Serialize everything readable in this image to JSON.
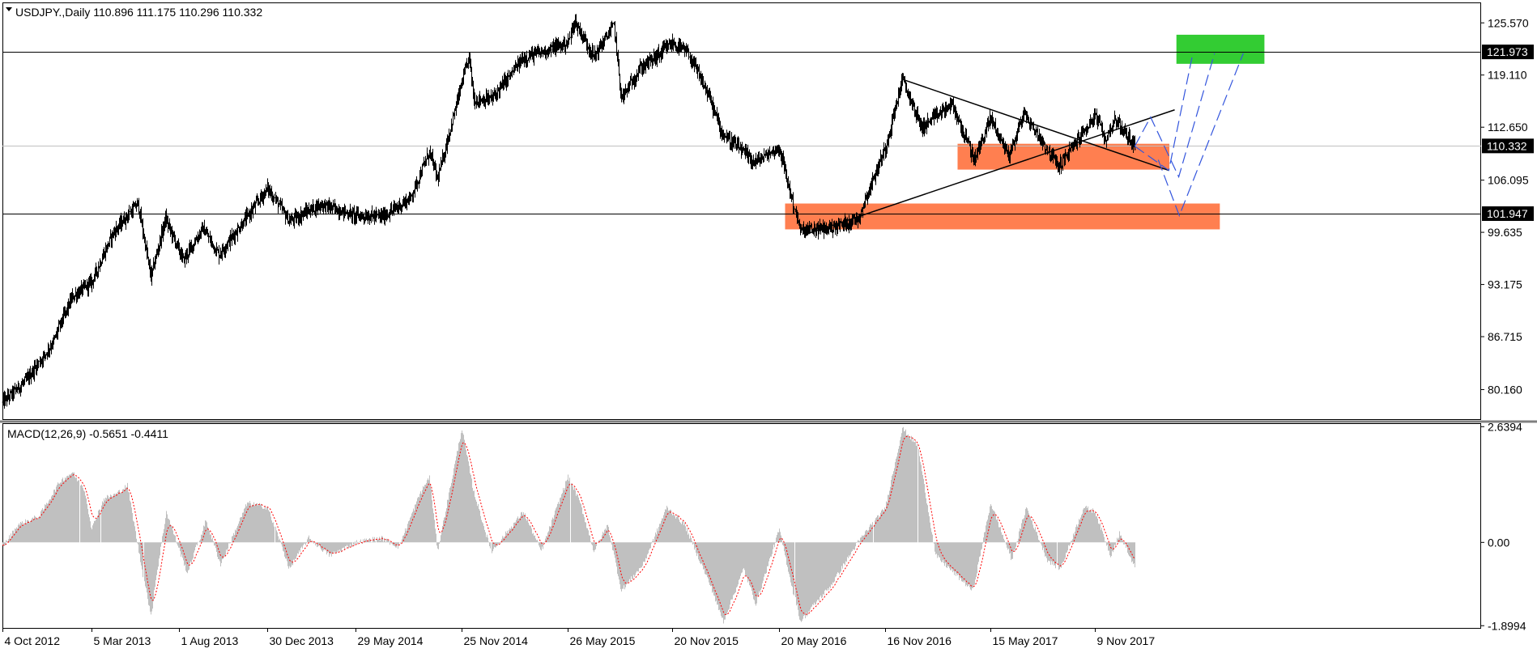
{
  "chart_data": [
    {
      "type": "candlestick",
      "title": "USDJPY.,Daily  110.896 111.175 110.296 110.332",
      "symbol": "USDJPY.",
      "timeframe": "Daily",
      "ohlc_last": {
        "open": 110.896,
        "high": 111.175,
        "low": 110.296,
        "close": 110.332
      },
      "ylim": [
        76.5,
        128.0
      ],
      "y_ticks": [
        "125.570",
        "119.110",
        "112.650",
        "106.095",
        "99.635",
        "93.175",
        "86.715",
        "80.160"
      ],
      "y_tick_values": [
        125.57,
        119.11,
        112.65,
        106.095,
        99.635,
        93.175,
        86.715,
        80.16
      ],
      "x_ticks": [
        "4 Oct 2012",
        "5 Mar 2013",
        "1 Aug 2013",
        "30 Dec 2013",
        "29 May 2014",
        "25 Nov 2014",
        "26 May 2015",
        "20 Nov 2015",
        "20 May 2016",
        "16 Nov 2016",
        "15 May 2017",
        "9 Nov 2017"
      ],
      "x_tick_dates": [
        "2012-10-04",
        "2013-03-05",
        "2013-08-01",
        "2013-12-30",
        "2014-05-29",
        "2014-11-25",
        "2015-05-26",
        "2015-11-20",
        "2016-05-20",
        "2016-11-16",
        "2017-05-15",
        "2017-11-09"
      ],
      "price_path": [
        {
          "date": "2012-10-04",
          "value": 78.6
        },
        {
          "date": "2012-11-15",
          "value": 81.4
        },
        {
          "date": "2012-12-28",
          "value": 86.0
        },
        {
          "date": "2013-01-31",
          "value": 91.6
        },
        {
          "date": "2013-03-05",
          "value": 93.5
        },
        {
          "date": "2013-04-10",
          "value": 99.5
        },
        {
          "date": "2013-05-22",
          "value": 103.2
        },
        {
          "date": "2013-06-13",
          "value": 94.1
        },
        {
          "date": "2013-07-08",
          "value": 101.3
        },
        {
          "date": "2013-08-08",
          "value": 96.2
        },
        {
          "date": "2013-09-10",
          "value": 100.1
        },
        {
          "date": "2013-10-08",
          "value": 96.9
        },
        {
          "date": "2013-11-20",
          "value": 101.0
        },
        {
          "date": "2013-12-30",
          "value": 105.1
        },
        {
          "date": "2014-02-04",
          "value": 101.0
        },
        {
          "date": "2014-03-31",
          "value": 103.1
        },
        {
          "date": "2014-05-29",
          "value": 101.7
        },
        {
          "date": "2014-07-15",
          "value": 101.6
        },
        {
          "date": "2014-08-29",
          "value": 103.8
        },
        {
          "date": "2014-10-01",
          "value": 109.6
        },
        {
          "date": "2014-10-15",
          "value": 106.2
        },
        {
          "date": "2014-11-25",
          "value": 118.1
        },
        {
          "date": "2014-12-08",
          "value": 121.4
        },
        {
          "date": "2014-12-16",
          "value": 116.0
        },
        {
          "date": "2015-01-15",
          "value": 116.2
        },
        {
          "date": "2015-03-10",
          "value": 121.2
        },
        {
          "date": "2015-05-26",
          "value": 123.1
        },
        {
          "date": "2015-06-05",
          "value": 125.8
        },
        {
          "date": "2015-07-08",
          "value": 121.4
        },
        {
          "date": "2015-08-12",
          "value": 125.3
        },
        {
          "date": "2015-08-24",
          "value": 116.2
        },
        {
          "date": "2015-09-25",
          "value": 119.9
        },
        {
          "date": "2015-11-20",
          "value": 123.0
        },
        {
          "date": "2015-12-15",
          "value": 121.9
        },
        {
          "date": "2016-01-20",
          "value": 116.5
        },
        {
          "date": "2016-02-11",
          "value": 112.0
        },
        {
          "date": "2016-04-07",
          "value": 108.3
        },
        {
          "date": "2016-05-20",
          "value": 110.1
        },
        {
          "date": "2016-06-24",
          "value": 99.8
        },
        {
          "date": "2016-08-16",
          "value": 100.2
        },
        {
          "date": "2016-09-30",
          "value": 101.3
        },
        {
          "date": "2016-11-16",
          "value": 110.1
        },
        {
          "date": "2016-12-15",
          "value": 118.6
        },
        {
          "date": "2017-01-17",
          "value": 112.6
        },
        {
          "date": "2017-03-10",
          "value": 115.5
        },
        {
          "date": "2017-04-17",
          "value": 108.6
        },
        {
          "date": "2017-05-15",
          "value": 113.8
        },
        {
          "date": "2017-06-14",
          "value": 109.2
        },
        {
          "date": "2017-07-11",
          "value": 114.3
        },
        {
          "date": "2017-09-08",
          "value": 107.8
        },
        {
          "date": "2017-11-09",
          "value": 114.1
        },
        {
          "date": "2017-11-27",
          "value": 111.1
        },
        {
          "date": "2017-12-12",
          "value": 113.7
        },
        {
          "date": "2018-01-16",
          "value": 110.332
        }
      ],
      "horizontal_levels": [
        {
          "label": "121.973",
          "value": 121.973,
          "color": "#000000"
        },
        {
          "label": "110.332",
          "value": 110.332,
          "color": "#c0c0c0"
        },
        {
          "label": "101.947",
          "value": 101.947,
          "color": "#000000"
        }
      ],
      "trendlines": [
        {
          "from": {
            "date": "2016-12-15",
            "value": 118.6
          },
          "to": {
            "date": "2018-03-15",
            "value": 107.3
          }
        },
        {
          "from": {
            "date": "2016-07-05",
            "value": 99.4
          },
          "to": {
            "date": "2018-03-25",
            "value": 114.8
          }
        }
      ],
      "zones": [
        {
          "color": "#ff7f50",
          "date_from": "2016-05-30",
          "date_to": "2018-06-10",
          "value_from": 100.0,
          "value_to": 103.2
        },
        {
          "color": "#ff7f50",
          "date_from": "2017-03-20",
          "date_to": "2018-03-16",
          "value_from": 107.4,
          "value_to": 110.6
        },
        {
          "color": "#33cc33",
          "date_from": "2018-03-28",
          "date_to": "2018-08-25",
          "value_from": 120.5,
          "value_to": 124.1
        }
      ],
      "projection_paths": [
        {
          "points": [
            {
              "date": "2018-01-16",
              "value": 110.3
            },
            {
              "date": "2018-03-15",
              "value": 107.3
            },
            {
              "date": "2018-04-25",
              "value": 121.8
            }
          ],
          "style": "dashed",
          "color": "#3355dd"
        },
        {
          "points": [
            {
              "date": "2018-01-16",
              "value": 110.3
            },
            {
              "date": "2018-02-12",
              "value": 113.9
            },
            {
              "date": "2018-04-01",
              "value": 106.5
            },
            {
              "date": "2018-06-01",
              "value": 121.8
            }
          ],
          "style": "dashed",
          "color": "#3355dd"
        },
        {
          "points": [
            {
              "date": "2018-02-25",
              "value": 108.6
            },
            {
              "date": "2018-04-02",
              "value": 101.7
            },
            {
              "date": "2018-07-20",
              "value": 121.8
            }
          ],
          "style": "dashed",
          "color": "#3355dd"
        }
      ]
    },
    {
      "type": "area",
      "title": "MACD(12,26,9) -0.5651 -0.4411",
      "indicator": "MACD(12,26,9)",
      "values_last": {
        "main": -0.5651,
        "signal": -0.4411
      },
      "ylim": [
        -1.95,
        2.7
      ],
      "y_ticks": [
        "2.6394",
        "0.00",
        "-1.8994"
      ],
      "y_tick_values": [
        2.6394,
        0.0,
        -1.8994
      ],
      "x_ticks": [
        "4 Oct 2012",
        "5 Mar 2013",
        "1 Aug 2013",
        "30 Dec 2013",
        "29 May 2014",
        "25 Nov 2014",
        "26 May 2015",
        "20 Nov 2015",
        "20 May 2016",
        "16 Nov 2016",
        "15 May 2017",
        "9 Nov 2017"
      ],
      "series": [
        {
          "kind": "histogram",
          "color": "#c0c0c0",
          "points": [
            {
              "date": "2012-10-04",
              "value": -0.1
            },
            {
              "date": "2012-10-30",
              "value": 0.4
            },
            {
              "date": "2012-12-05",
              "value": 0.6
            },
            {
              "date": "2013-01-10",
              "value": 1.4
            },
            {
              "date": "2013-01-31",
              "value": 1.6
            },
            {
              "date": "2013-02-20",
              "value": 1.2
            },
            {
              "date": "2013-03-05",
              "value": 0.3
            },
            {
              "date": "2013-03-25",
              "value": 1.0
            },
            {
              "date": "2013-04-15",
              "value": 1.1
            },
            {
              "date": "2013-05-05",
              "value": 1.3
            },
            {
              "date": "2013-06-13",
              "value": -1.7
            },
            {
              "date": "2013-07-10",
              "value": 0.7
            },
            {
              "date": "2013-08-15",
              "value": -0.7
            },
            {
              "date": "2013-09-15",
              "value": 0.5
            },
            {
              "date": "2013-10-10",
              "value": -0.5
            },
            {
              "date": "2013-11-25",
              "value": 0.9
            },
            {
              "date": "2013-12-30",
              "value": 0.8
            },
            {
              "date": "2014-02-04",
              "value": -0.6
            },
            {
              "date": "2014-03-10",
              "value": 0.1
            },
            {
              "date": "2014-04-15",
              "value": -0.3
            },
            {
              "date": "2014-05-29",
              "value": 0.0
            },
            {
              "date": "2014-07-10",
              "value": 0.1
            },
            {
              "date": "2014-08-10",
              "value": -0.1
            },
            {
              "date": "2014-09-15",
              "value": 1.1
            },
            {
              "date": "2014-10-01",
              "value": 1.5
            },
            {
              "date": "2014-10-15",
              "value": -0.2
            },
            {
              "date": "2014-11-25",
              "value": 2.6
            },
            {
              "date": "2014-12-15",
              "value": 1.2
            },
            {
              "date": "2015-01-15",
              "value": -0.2
            },
            {
              "date": "2015-03-10",
              "value": 0.7
            },
            {
              "date": "2015-04-10",
              "value": -0.2
            },
            {
              "date": "2015-05-26",
              "value": 1.5
            },
            {
              "date": "2015-06-15",
              "value": 0.9
            },
            {
              "date": "2015-07-08",
              "value": -0.2
            },
            {
              "date": "2015-08-01",
              "value": 0.4
            },
            {
              "date": "2015-08-25",
              "value": -1.1
            },
            {
              "date": "2015-10-01",
              "value": -0.5
            },
            {
              "date": "2015-11-10",
              "value": 0.8
            },
            {
              "date": "2015-12-10",
              "value": 0.4
            },
            {
              "date": "2016-01-20",
              "value": -0.9
            },
            {
              "date": "2016-02-15",
              "value": -1.8
            },
            {
              "date": "2016-03-20",
              "value": -0.6
            },
            {
              "date": "2016-04-10",
              "value": -1.4
            },
            {
              "date": "2016-05-20",
              "value": 0.3
            },
            {
              "date": "2016-06-24",
              "value": -1.8
            },
            {
              "date": "2016-08-15",
              "value": -1.0
            },
            {
              "date": "2016-10-01",
              "value": 0.0
            },
            {
              "date": "2016-11-16",
              "value": 0.8
            },
            {
              "date": "2016-12-15",
              "value": 2.6
            },
            {
              "date": "2017-01-10",
              "value": 2.2
            },
            {
              "date": "2017-02-10",
              "value": -0.3
            },
            {
              "date": "2017-04-15",
              "value": -1.1
            },
            {
              "date": "2017-05-15",
              "value": 0.9
            },
            {
              "date": "2017-06-20",
              "value": -0.4
            },
            {
              "date": "2017-07-15",
              "value": 0.8
            },
            {
              "date": "2017-08-20",
              "value": -0.4
            },
            {
              "date": "2017-09-10",
              "value": -0.6
            },
            {
              "date": "2017-10-20",
              "value": 0.8
            },
            {
              "date": "2017-11-09",
              "value": 0.7
            },
            {
              "date": "2017-12-05",
              "value": -0.3
            },
            {
              "date": "2017-12-20",
              "value": 0.2
            },
            {
              "date": "2018-01-16",
              "value": -0.5651
            }
          ]
        },
        {
          "kind": "signal-line",
          "color": "#ff0000",
          "style": "dotted",
          "last_value": -0.4411
        }
      ]
    }
  ]
}
